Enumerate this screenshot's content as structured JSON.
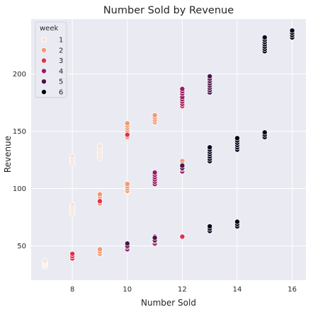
{
  "chart_data": {
    "type": "scatter",
    "title": "Number Sold by Revenue",
    "xlabel": "Number Sold",
    "ylabel": "Revenue",
    "xlim": [
      6.5,
      16.5
    ],
    "ylim": [
      20,
      248
    ],
    "xticks": [
      8,
      10,
      12,
      14,
      16
    ],
    "yticks": [
      50,
      100,
      150,
      200
    ],
    "grid": true,
    "legend": {
      "title": "week",
      "placement": "top-left",
      "entries": [
        "1",
        "2",
        "3",
        "4",
        "5",
        "6"
      ]
    },
    "colors": {
      "background": "#eaeaf2",
      "grid": "#ffffff",
      "marker_edge": "#ffffff",
      "1": "#f6e4d8",
      "2": "#f3996e",
      "3": "#e0314d",
      "4": "#9c1a64",
      "5": "#4a1547",
      "6": "#03051a"
    },
    "series": [
      {
        "name": "1",
        "points": [
          [
            7,
            32
          ],
          [
            7,
            33
          ],
          [
            7,
            34
          ],
          [
            7,
            35
          ],
          [
            7,
            36
          ],
          [
            7,
            37
          ],
          [
            8,
            78
          ],
          [
            8,
            80
          ],
          [
            8,
            82
          ],
          [
            8,
            84
          ],
          [
            8,
            86
          ],
          [
            8,
            122
          ],
          [
            8,
            124
          ],
          [
            8,
            126
          ],
          [
            8,
            128
          ],
          [
            9,
            127
          ],
          [
            9,
            129
          ],
          [
            9,
            131
          ],
          [
            9,
            133
          ],
          [
            9,
            135
          ],
          [
            9,
            137
          ],
          [
            10,
            97
          ],
          [
            10,
            99
          ],
          [
            10,
            101
          ],
          [
            10,
            103
          ]
        ]
      },
      {
        "name": "2",
        "points": [
          [
            8,
            40
          ],
          [
            8,
            42
          ],
          [
            9,
            43
          ],
          [
            9,
            45
          ],
          [
            9,
            47
          ],
          [
            9,
            87
          ],
          [
            9,
            89
          ],
          [
            9,
            91
          ],
          [
            9,
            93
          ],
          [
            9,
            95
          ],
          [
            10,
            98
          ],
          [
            10,
            100
          ],
          [
            10,
            102
          ],
          [
            10,
            104
          ],
          [
            10,
            145
          ],
          [
            10,
            147
          ],
          [
            10,
            149
          ],
          [
            10,
            151
          ],
          [
            10,
            153
          ],
          [
            10,
            155
          ],
          [
            10,
            157
          ],
          [
            11,
            158
          ],
          [
            11,
            160
          ],
          [
            11,
            162
          ],
          [
            11,
            164
          ],
          [
            12,
            117
          ],
          [
            12,
            120
          ],
          [
            12,
            122
          ],
          [
            12,
            124
          ]
        ]
      },
      {
        "name": "3",
        "points": [
          [
            8,
            39
          ],
          [
            8,
            41
          ],
          [
            8,
            43
          ],
          [
            9,
            89
          ],
          [
            10,
            147
          ],
          [
            12,
            58
          ],
          [
            12,
            172
          ],
          [
            12,
            175
          ],
          [
            12,
            178
          ],
          [
            12,
            181
          ],
          [
            12,
            184
          ]
        ]
      },
      {
        "name": "4",
        "points": [
          [
            10,
            47
          ],
          [
            10,
            49
          ],
          [
            11,
            52
          ],
          [
            11,
            54
          ],
          [
            11,
            56
          ],
          [
            11,
            58
          ],
          [
            11,
            104
          ],
          [
            11,
            106
          ],
          [
            11,
            108
          ],
          [
            11,
            110
          ],
          [
            11,
            112
          ],
          [
            11,
            114
          ],
          [
            12,
            115
          ],
          [
            12,
            117
          ],
          [
            12,
            119
          ],
          [
            12,
            121
          ],
          [
            12,
            174
          ],
          [
            12,
            176
          ],
          [
            12,
            178
          ],
          [
            12,
            180
          ],
          [
            12,
            183
          ],
          [
            12,
            185
          ],
          [
            12,
            187
          ],
          [
            13,
            189
          ],
          [
            13,
            191
          ]
        ]
      },
      {
        "name": "5",
        "points": [
          [
            10,
            50
          ],
          [
            10,
            52
          ],
          [
            11,
            55
          ],
          [
            11,
            57
          ],
          [
            12,
            118
          ],
          [
            12,
            120
          ],
          [
            13,
            125
          ],
          [
            13,
            127
          ],
          [
            13,
            129
          ],
          [
            13,
            184
          ],
          [
            13,
            186
          ],
          [
            13,
            188
          ],
          [
            13,
            190
          ],
          [
            13,
            192
          ],
          [
            13,
            194
          ],
          [
            13,
            196
          ],
          [
            13,
            198
          ]
        ]
      },
      {
        "name": "6",
        "points": [
          [
            13,
            63
          ],
          [
            13,
            65
          ],
          [
            13,
            67
          ],
          [
            13,
            124
          ],
          [
            13,
            126
          ],
          [
            13,
            128
          ],
          [
            13,
            130
          ],
          [
            13,
            132
          ],
          [
            13,
            134
          ],
          [
            13,
            136
          ],
          [
            14,
            67
          ],
          [
            14,
            69
          ],
          [
            14,
            71
          ],
          [
            14,
            134
          ],
          [
            14,
            136
          ],
          [
            14,
            138
          ],
          [
            14,
            140
          ],
          [
            14,
            142
          ],
          [
            14,
            144
          ],
          [
            15,
            145
          ],
          [
            15,
            147
          ],
          [
            15,
            149
          ],
          [
            15,
            220
          ],
          [
            15,
            222
          ],
          [
            15,
            224
          ],
          [
            15,
            226
          ],
          [
            15,
            228
          ],
          [
            15,
            230
          ],
          [
            15,
            232
          ],
          [
            16,
            232
          ],
          [
            16,
            234
          ],
          [
            16,
            236
          ],
          [
            16,
            238
          ]
        ]
      }
    ]
  }
}
